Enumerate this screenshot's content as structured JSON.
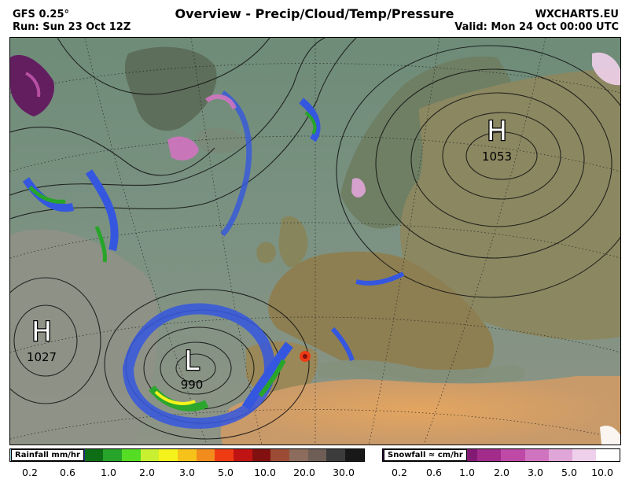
{
  "header": {
    "model": "GFS 0.25°",
    "run": "Run: Sun 23 Oct 12Z",
    "title": "Overview - Precip/Cloud/Temp/Pressure",
    "site": "WXCHARTS.EU",
    "valid": "Valid: Mon 24 Oct 00:00 UTC"
  },
  "pressure_centers": [
    {
      "type": "H",
      "value": "1053"
    },
    {
      "type": "H",
      "value": "1027"
    },
    {
      "type": "L",
      "value": "990"
    }
  ],
  "legend": {
    "rainfall": {
      "title": "Rainfall mm/hr",
      "colors": [
        "#9fdcf0",
        "#6aa9ee",
        "#2c4fd8",
        "#1d2a9c",
        "#0e6e16",
        "#27a52a",
        "#55dd24",
        "#c8f030",
        "#f4f31c",
        "#f7c21a",
        "#f28c1c",
        "#ee3b14",
        "#c01414",
        "#821010",
        "#9c4c34",
        "#8c6c5c",
        "#6e5e56",
        "#3c3c3c",
        "#181818"
      ],
      "ticks": [
        "0.2",
        "0.6",
        "1.0",
        "2.0",
        "3.0",
        "5.0",
        "10.0",
        "20.0",
        "30.0"
      ]
    },
    "snowfall": {
      "title": "Snowfall ≈ cm/hr",
      "colors": [
        "#2a0a3e",
        "#45104f",
        "#62125e",
        "#821a73",
        "#a22c8c",
        "#bf49a7",
        "#d174c0",
        "#e1a6d8",
        "#efd0eb",
        "#ffffff"
      ],
      "ticks": [
        "0.2",
        "0.6",
        "1.0",
        "2.0",
        "3.0",
        "5.0",
        "10.0"
      ]
    }
  }
}
